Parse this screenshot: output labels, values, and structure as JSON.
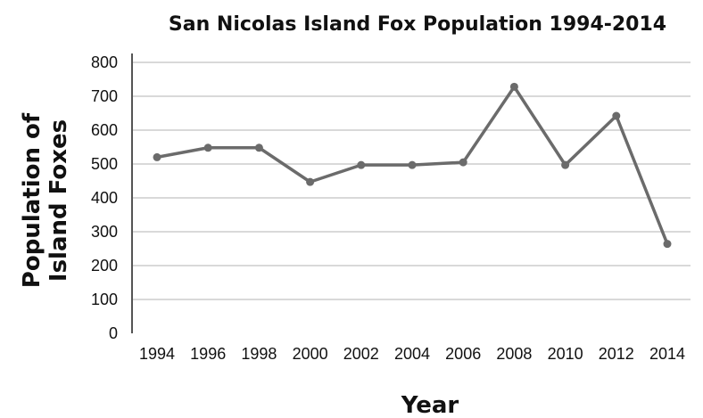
{
  "chart_data": {
    "type": "line",
    "title": "San Nicolas Island Fox Population 1994-2014",
    "xlabel": "Year",
    "ylabel": [
      "Population of",
      "Island Foxes"
    ],
    "categories": [
      "1994",
      "1996",
      "1998",
      "2000",
      "2002",
      "2004",
      "2006",
      "2008",
      "2010",
      "2012",
      "2014"
    ],
    "series": [
      {
        "values": [
          520,
          548,
          548,
          447,
          497,
          497,
          505,
          728,
          497,
          642,
          264
        ]
      }
    ],
    "ylim": [
      0,
      800
    ],
    "yticks": [
      0,
      100,
      200,
      300,
      400,
      500,
      600,
      700,
      800
    ],
    "grid": true,
    "line_color": "#6b6b6b",
    "grid_color": "#d9d9d9"
  }
}
